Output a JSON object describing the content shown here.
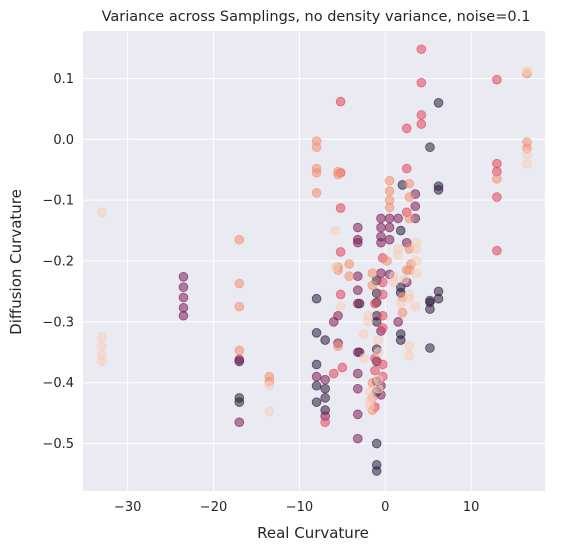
{
  "chart_data": {
    "type": "scatter",
    "title": "Variance across Samplings, no density variance, noise=0.1",
    "xlabel": "Real Curvature",
    "ylabel": "Diffusion Curvature",
    "xlim": [
      -35.2,
      18.6
    ],
    "ylim": [
      -0.578,
      0.178
    ],
    "xticks": [
      -30,
      -20,
      -10,
      0,
      10
    ],
    "xtick_labels": [
      "−30",
      "−20",
      "−10",
      "0",
      "10"
    ],
    "yticks": [
      -0.5,
      -0.4,
      -0.3,
      -0.2,
      -0.1,
      0.0,
      0.1
    ],
    "ytick_labels": [
      "−0.5",
      "−0.4",
      "−0.3",
      "−0.2",
      "−0.1",
      "0.0",
      "0.1"
    ],
    "grid": true,
    "background": "#eaeaf2",
    "point_opacity": 0.55,
    "series": [
      {
        "color": "#2d1e3e",
        "points": [
          [
            6.2,
            0.06
          ],
          [
            5.2,
            -0.013
          ],
          [
            6.2,
            -0.077
          ],
          [
            6.2,
            -0.083
          ],
          [
            6.2,
            -0.25
          ],
          [
            6.2,
            -0.262
          ],
          [
            5.2,
            -0.265
          ],
          [
            5.2,
            -0.268
          ],
          [
            5.2,
            -0.279
          ],
          [
            5.2,
            -0.343
          ],
          [
            2.0,
            -0.075
          ],
          [
            1.8,
            -0.15
          ],
          [
            1.8,
            -0.243
          ],
          [
            1.8,
            -0.252
          ],
          [
            1.8,
            -0.32
          ],
          [
            1.8,
            -0.33
          ],
          [
            -1.0,
            -0.232
          ],
          [
            -1.0,
            -0.253
          ],
          [
            -1.0,
            -0.268
          ],
          [
            -1.0,
            -0.29
          ],
          [
            -1.0,
            -0.3
          ],
          [
            -1.0,
            -0.345
          ],
          [
            -1.0,
            -0.365
          ],
          [
            -1.0,
            -0.398
          ],
          [
            -1.0,
            -0.415
          ],
          [
            -1.0,
            -0.5
          ],
          [
            -1.0,
            -0.535
          ],
          [
            -1.0,
            -0.545
          ],
          [
            -3.0,
            -0.27
          ],
          [
            -3.0,
            -0.35
          ],
          [
            -8.0,
            -0.262
          ],
          [
            -8.0,
            -0.318
          ],
          [
            -8.0,
            -0.37
          ],
          [
            -8.0,
            -0.405
          ],
          [
            -8.0,
            -0.432
          ],
          [
            -7.0,
            -0.33
          ],
          [
            -7.0,
            -0.41
          ],
          [
            -7.0,
            -0.425
          ],
          [
            -7.0,
            -0.445
          ],
          [
            -17.0,
            -0.425
          ],
          [
            -17.0,
            -0.432
          ],
          [
            -17.0,
            -0.365
          ]
        ]
      },
      {
        "color": "#7d1d5a",
        "points": [
          [
            -23.5,
            -0.226
          ],
          [
            -23.5,
            -0.243
          ],
          [
            -23.5,
            -0.26
          ],
          [
            -23.5,
            -0.277
          ],
          [
            -23.5,
            -0.29
          ],
          [
            -17.0,
            -0.465
          ],
          [
            -17.0,
            -0.362
          ],
          [
            -8.0,
            -0.39
          ],
          [
            -7.0,
            -0.395
          ],
          [
            -7.0,
            -0.455
          ],
          [
            -6.0,
            -0.3
          ],
          [
            -5.5,
            -0.29
          ],
          [
            -5.5,
            -0.335
          ],
          [
            -3.2,
            -0.145
          ],
          [
            -3.2,
            -0.165
          ],
          [
            -3.2,
            -0.17
          ],
          [
            -3.2,
            -0.225
          ],
          [
            -3.2,
            -0.248
          ],
          [
            -3.2,
            -0.27
          ],
          [
            -3.2,
            -0.35
          ],
          [
            -3.2,
            -0.385
          ],
          [
            -3.2,
            -0.41
          ],
          [
            -3.2,
            -0.452
          ],
          [
            -3.2,
            -0.492
          ],
          [
            -0.5,
            -0.13
          ],
          [
            -0.5,
            -0.145
          ],
          [
            -0.5,
            -0.16
          ],
          [
            -0.5,
            -0.17
          ],
          [
            -0.5,
            -0.22
          ],
          [
            -0.5,
            -0.315
          ],
          [
            -0.5,
            -0.405
          ],
          [
            -0.5,
            -0.42
          ],
          [
            0.5,
            -0.13
          ],
          [
            0.5,
            -0.145
          ],
          [
            0.5,
            -0.165
          ],
          [
            0.5,
            -0.222
          ],
          [
            2.5,
            -0.17
          ],
          [
            2.5,
            -0.235
          ],
          [
            1.5,
            -0.13
          ],
          [
            1.5,
            -0.3
          ],
          [
            3.5,
            -0.09
          ],
          [
            3.5,
            -0.11
          ],
          [
            3.5,
            -0.13
          ]
        ]
      },
      {
        "color": "#e2445b",
        "points": [
          [
            4.2,
            0.148
          ],
          [
            4.2,
            0.093
          ],
          [
            4.2,
            0.04
          ],
          [
            4.2,
            0.025
          ],
          [
            2.5,
            0.018
          ],
          [
            2.5,
            -0.048
          ],
          [
            2.5,
            -0.12
          ],
          [
            13.0,
            0.098
          ],
          [
            13.0,
            -0.04
          ],
          [
            13.0,
            -0.053
          ],
          [
            13.0,
            -0.095
          ],
          [
            13.0,
            -0.183
          ],
          [
            -5.2,
            0.062
          ],
          [
            -5.2,
            -0.055
          ],
          [
            -5.2,
            -0.113
          ],
          [
            -5.2,
            -0.185
          ],
          [
            -5.2,
            -0.255
          ],
          [
            -0.3,
            -0.195
          ],
          [
            -0.3,
            -0.235
          ],
          [
            -0.3,
            -0.255
          ],
          [
            -0.3,
            -0.29
          ],
          [
            -0.3,
            -0.31
          ],
          [
            -0.3,
            -0.37
          ],
          [
            -0.3,
            -0.39
          ],
          [
            -1.2,
            -0.27
          ],
          [
            -1.2,
            -0.36
          ],
          [
            -1.2,
            -0.44
          ],
          [
            -1.2,
            -0.38
          ],
          [
            -7.0,
            -0.465
          ],
          [
            -6.0,
            -0.385
          ],
          [
            -5.0,
            -0.375
          ]
        ]
      },
      {
        "color": "#f29070",
        "points": [
          [
            16.5,
            0.108
          ],
          [
            16.5,
            -0.005
          ],
          [
            16.5,
            -0.015
          ],
          [
            13.0,
            -0.065
          ],
          [
            -8.0,
            -0.003
          ],
          [
            -8.0,
            -0.013
          ],
          [
            -8.0,
            -0.048
          ],
          [
            -8.0,
            -0.055
          ],
          [
            -8.0,
            -0.088
          ],
          [
            -5.5,
            -0.053
          ],
          [
            -5.5,
            -0.058
          ],
          [
            -5.5,
            -0.21
          ],
          [
            -5.5,
            -0.215
          ],
          [
            -5.5,
            -0.34
          ],
          [
            0.5,
            -0.068
          ],
          [
            0.5,
            -0.085
          ],
          [
            0.5,
            -0.1
          ],
          [
            0.5,
            -0.112
          ],
          [
            2.8,
            -0.073
          ],
          [
            2.8,
            -0.095
          ],
          [
            2.8,
            -0.13
          ],
          [
            2.8,
            -0.18
          ],
          [
            2.8,
            -0.215
          ],
          [
            -17.0,
            -0.165
          ],
          [
            -17.0,
            -0.237
          ],
          [
            -17.0,
            -0.275
          ],
          [
            -17.0,
            -0.347
          ],
          [
            -13.5,
            -0.39
          ],
          [
            -13.5,
            -0.398
          ],
          [
            -4.2,
            -0.205
          ],
          [
            -4.2,
            -0.225
          ],
          [
            -1.5,
            -0.22
          ],
          [
            -1.5,
            -0.24
          ],
          [
            -1.5,
            -0.445
          ],
          [
            -1.5,
            -0.425
          ],
          [
            -1.5,
            -0.4
          ],
          [
            0.2,
            -0.2
          ],
          [
            2.0,
            -0.26
          ],
          [
            2.0,
            -0.285
          ],
          [
            3.0,
            -0.205
          ],
          [
            2.5,
            -0.215
          ]
        ]
      },
      {
        "color": "#f7cdb7",
        "points": [
          [
            -33.0,
            -0.12
          ],
          [
            -33.0,
            -0.325
          ],
          [
            -33.0,
            -0.34
          ],
          [
            -33.0,
            -0.355
          ],
          [
            -33.0,
            -0.365
          ],
          [
            -13.5,
            -0.405
          ],
          [
            -13.5,
            -0.447
          ],
          [
            16.5,
            0.113
          ],
          [
            16.5,
            -0.025
          ],
          [
            16.5,
            -0.04
          ],
          [
            -5.8,
            -0.15
          ],
          [
            -5.8,
            -0.21
          ],
          [
            -5.2,
            -0.275
          ],
          [
            2.8,
            -0.255
          ],
          [
            2.8,
            -0.262
          ],
          [
            2.8,
            -0.34
          ],
          [
            2.8,
            -0.355
          ],
          [
            -0.8,
            -0.33
          ],
          [
            -0.8,
            -0.35
          ],
          [
            -0.8,
            -0.395
          ],
          [
            -0.8,
            -0.41
          ],
          [
            3.6,
            -0.17
          ],
          [
            3.6,
            -0.18
          ],
          [
            3.6,
            -0.2
          ],
          [
            3.6,
            -0.22
          ],
          [
            1.5,
            -0.18
          ],
          [
            1.5,
            -0.19
          ],
          [
            1.0,
            -0.225
          ],
          [
            1.0,
            -0.235
          ],
          [
            -2.0,
            -0.29
          ],
          [
            -2.0,
            -0.3
          ],
          [
            -2.5,
            -0.32
          ],
          [
            -2.5,
            -0.36
          ],
          [
            -1.8,
            -0.44
          ],
          [
            -1.8,
            -0.43
          ],
          [
            -1.8,
            -0.415
          ],
          [
            2.2,
            -0.23
          ],
          [
            3.5,
            -0.275
          ],
          [
            1.8,
            -0.27
          ]
        ]
      }
    ]
  }
}
